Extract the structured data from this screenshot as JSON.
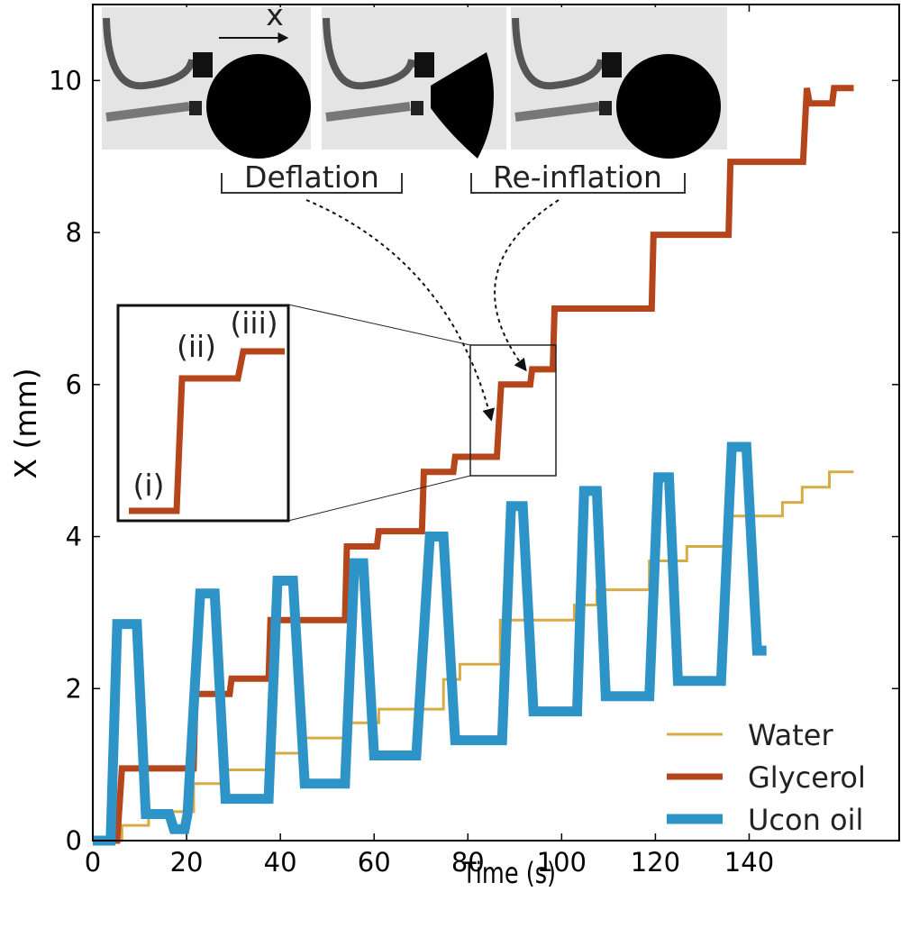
{
  "chart_data": {
    "type": "line",
    "xlabel": "Time (s)",
    "ylabel": "X (mm)",
    "xlim": [
      0,
      172
    ],
    "ylim": [
      0,
      11
    ],
    "xticks": [
      0,
      20,
      40,
      60,
      80,
      100,
      120,
      140
    ],
    "yticks": [
      0,
      2,
      4,
      6,
      8,
      10
    ],
    "legend_loc": "lower right",
    "series": [
      {
        "name": "Water",
        "color": "#d9ab45",
        "width": 3,
        "x": [
          0,
          6.2,
          6.2,
          11.9,
          11.9,
          21.5,
          21.5,
          27.3,
          27.3,
          37.9,
          37.9,
          44.2,
          44.2,
          53.8,
          53.8,
          61,
          61,
          74.8,
          74.8,
          78.3,
          78.3,
          86.9,
          86.9,
          102.7,
          102.7,
          107.5,
          107.5,
          118.7,
          118.7,
          126.7,
          126.7,
          135,
          135,
          147.1,
          147.1,
          151.3,
          151.3,
          157.1,
          157.1,
          162.3
        ],
        "values": [
          0,
          0,
          0.2,
          0.2,
          0.38,
          0.38,
          0.75,
          0.75,
          0.93,
          0.93,
          1.15,
          1.15,
          1.35,
          1.35,
          1.55,
          1.55,
          1.73,
          1.73,
          2.12,
          2.12,
          2.32,
          2.32,
          2.9,
          2.9,
          3.1,
          3.1,
          3.3,
          3.3,
          3.68,
          3.68,
          3.87,
          3.87,
          4.27,
          4.27,
          4.45,
          4.45,
          4.65,
          4.65,
          4.85,
          4.85
        ]
      },
      {
        "name": "Glycerol",
        "color": "#b5451b",
        "width": 7,
        "x": [
          0,
          5.2,
          6.2,
          21.5,
          21.9,
          29.2,
          29.6,
          37.5,
          37.9,
          53.8,
          54.2,
          60.6,
          61,
          70.2,
          70.6,
          76.9,
          77.3,
          86.2,
          87.1,
          93.3,
          93.7,
          98.1,
          98.5,
          119.2,
          119.6,
          135.6,
          136,
          151.5,
          152.3,
          152.9,
          157.7,
          158.1,
          162.3
        ],
        "values": [
          0,
          0,
          0.95,
          0.95,
          1.93,
          1.93,
          2.13,
          2.13,
          2.9,
          2.9,
          3.87,
          3.87,
          4.07,
          4.07,
          4.85,
          4.85,
          5.05,
          5.05,
          6.0,
          6.0,
          6.2,
          6.2,
          7.0,
          7.0,
          7.97,
          7.97,
          8.93,
          8.93,
          9.9,
          9.7,
          9.7,
          9.9,
          9.9
        ]
      },
      {
        "name": "Ucon oil",
        "color": "#2e93c6",
        "width": 11,
        "x": [
          0,
          3.8,
          5.2,
          9.4,
          11.3,
          16.3,
          17.3,
          19.6,
          20.2,
          22.9,
          26,
          28.3,
          37.5,
          39.4,
          42.7,
          45.2,
          53.8,
          55.8,
          57.7,
          60,
          69,
          71.9,
          74.8,
          77.3,
          87.3,
          89.2,
          91.7,
          94,
          103.3,
          104.8,
          107.5,
          109.4,
          118.7,
          120.6,
          122.9,
          124.8,
          134,
          136.3,
          139.4,
          141.7,
          143.7
        ],
        "values": [
          0,
          0,
          2.85,
          2.85,
          0.35,
          0.35,
          0.15,
          0.15,
          0.35,
          3.25,
          3.25,
          0.55,
          0.55,
          3.42,
          3.42,
          0.75,
          0.75,
          3.65,
          3.65,
          1.12,
          1.12,
          4.0,
          4.0,
          1.32,
          1.32,
          4.4,
          4.4,
          1.7,
          1.7,
          4.6,
          4.6,
          1.9,
          1.9,
          4.78,
          4.78,
          2.1,
          2.1,
          5.18,
          5.18,
          2.5,
          2.5
        ]
      }
    ],
    "annotations": {
      "x_arrow": "x",
      "deflation": "Deflation",
      "reinflation": "Re-inflation",
      "inset_labels": [
        "(i)",
        "(ii)",
        "(iii)"
      ]
    }
  }
}
